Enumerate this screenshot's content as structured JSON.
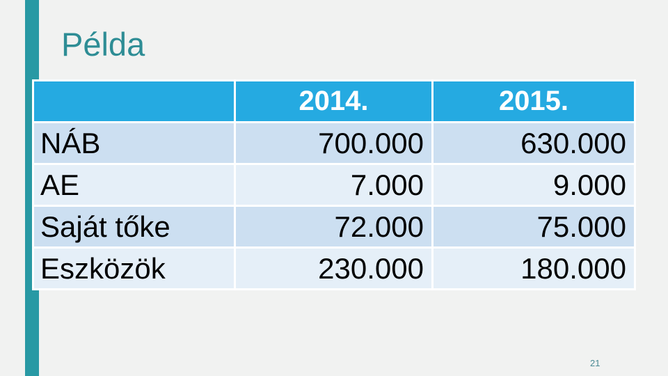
{
  "slide": {
    "title": "Példa",
    "page_number": "21"
  },
  "table": {
    "columns": [
      "",
      "2014.",
      "2015."
    ],
    "rows": [
      {
        "label": "NÁB",
        "y2014": "700.000",
        "y2015": "630.000"
      },
      {
        "label": "AE",
        "y2014": "7.000",
        "y2015": "9.000"
      },
      {
        "label": "Saját tőke",
        "y2014": "72.000",
        "y2015": "75.000"
      },
      {
        "label": "Eszközök",
        "y2014": "230.000",
        "y2015": "180.000"
      }
    ]
  },
  "colors": {
    "background": "#F1F2F1",
    "accent_bar": "#2899A4",
    "title_text": "#2E8D95",
    "header_bg": "#25AAE1",
    "header_text": "#FFFFFF",
    "row_stripe_dark": "#CCDFF1",
    "row_stripe_light": "#E5EFF8",
    "cell_text": "#000000",
    "gridline": "#FFFFFF",
    "page_number_text": "#4A8A94"
  }
}
